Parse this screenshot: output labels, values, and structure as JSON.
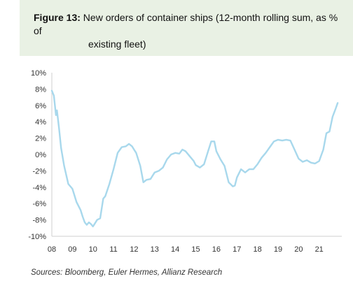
{
  "figure": {
    "label": "Figure 13:",
    "title_line1": "New orders of container ships (12-month rolling sum, as % of",
    "title_line2": "existing fleet)"
  },
  "source": "Sources: Bloomberg, Euler Hermes, Allianz Research",
  "colors": {
    "line": "#a8d8ec",
    "header_bg": "#e9f1e4",
    "axis": "#cfcfcf"
  },
  "chart_data": {
    "type": "line",
    "title": "New orders of container ships (12-month rolling sum, as % of existing fleet)",
    "xlabel": "",
    "ylabel": "",
    "x_ticks": [
      "08",
      "09",
      "10",
      "11",
      "12",
      "13",
      "14",
      "15",
      "16",
      "17",
      "18",
      "19",
      "20",
      "21"
    ],
    "y_ticks": [
      "10%",
      "8%",
      "6%",
      "4%",
      "2%",
      "0%",
      "-2%",
      "-4%",
      "-6%",
      "-8%",
      "-10%"
    ],
    "xlim": [
      2008,
      2022.1
    ],
    "ylim": [
      -10,
      10
    ],
    "grid": false,
    "series": [
      {
        "name": "",
        "x": [
          2008.0,
          2008.1,
          2008.2,
          2008.25,
          2008.35,
          2008.45,
          2008.6,
          2008.8,
          2009.0,
          2009.2,
          2009.4,
          2009.5,
          2009.6,
          2009.7,
          2009.8,
          2009.9,
          2010.0,
          2010.1,
          2010.2,
          2010.35,
          2010.5,
          2010.6,
          2010.8,
          2011.0,
          2011.2,
          2011.4,
          2011.6,
          2011.75,
          2011.9,
          2012.0,
          2012.1,
          2012.3,
          2012.45,
          2012.6,
          2012.8,
          2013.0,
          2013.2,
          2013.4,
          2013.6,
          2013.8,
          2014.0,
          2014.2,
          2014.35,
          2014.5,
          2014.7,
          2014.9,
          2015.0,
          2015.2,
          2015.4,
          2015.6,
          2015.75,
          2015.9,
          2016.0,
          2016.2,
          2016.4,
          2016.6,
          2016.8,
          2016.9,
          2017.0,
          2017.2,
          2017.4,
          2017.6,
          2017.8,
          2018.0,
          2018.2,
          2018.4,
          2018.6,
          2018.8,
          2019.0,
          2019.2,
          2019.4,
          2019.6,
          2019.8,
          2020.0,
          2020.2,
          2020.4,
          2020.6,
          2020.8,
          2021.0,
          2021.2,
          2021.35,
          2021.5,
          2021.65,
          2021.8,
          2021.9
        ],
        "values": [
          7.8,
          7.2,
          4.8,
          5.4,
          3.2,
          0.8,
          -1.4,
          -3.6,
          -4.2,
          -5.8,
          -6.8,
          -7.6,
          -8.3,
          -8.6,
          -8.3,
          -8.5,
          -8.8,
          -8.4,
          -8.0,
          -7.8,
          -5.4,
          -5.1,
          -3.6,
          -1.8,
          0.2,
          0.9,
          1.0,
          1.3,
          1.0,
          0.6,
          0.2,
          -1.4,
          -3.4,
          -3.1,
          -3.0,
          -2.2,
          -2.0,
          -1.6,
          -0.6,
          0.0,
          0.2,
          0.1,
          0.6,
          0.4,
          -0.2,
          -0.8,
          -1.3,
          -1.6,
          -1.2,
          0.4,
          1.6,
          1.6,
          0.4,
          -0.6,
          -1.4,
          -3.4,
          -3.9,
          -3.8,
          -2.8,
          -1.8,
          -2.2,
          -1.8,
          -1.8,
          -1.2,
          -0.4,
          0.2,
          0.9,
          1.6,
          1.8,
          1.7,
          1.8,
          1.7,
          0.6,
          -0.5,
          -0.9,
          -0.7,
          -1.0,
          -1.1,
          -0.8,
          0.6,
          2.6,
          2.8,
          4.6,
          5.6,
          6.3
        ]
      }
    ]
  }
}
